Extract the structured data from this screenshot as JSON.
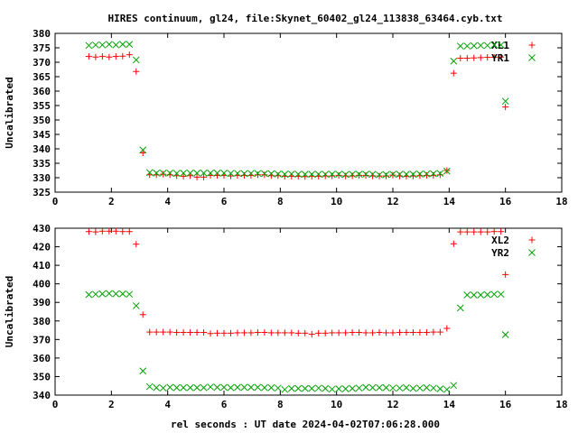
{
  "figure": {
    "title": "HIRES continuum, gl24, file:Skynet_60402_gl24_113838_63464.cyb.txt",
    "xlabel": "rel seconds : UT date 2024-04-02T07:06:28.000"
  },
  "chart_data": [
    {
      "type": "scatter",
      "ylabel": "Uncalibrated",
      "xlim": [
        0,
        18
      ],
      "ylim": [
        325,
        380
      ],
      "xticks": [
        0,
        2,
        4,
        6,
        8,
        10,
        12,
        14,
        16,
        18
      ],
      "yticks": [
        325,
        330,
        335,
        340,
        345,
        350,
        355,
        360,
        365,
        370,
        375,
        380
      ],
      "legend_position": "top-right",
      "grid": false,
      "series": [
        {
          "name": "XL1",
          "color": "#ff0000",
          "marker": "plus",
          "x": [
            1.2,
            1.44,
            1.68,
            1.92,
            2.16,
            2.4,
            2.64,
            2.88,
            3.12,
            3.36,
            3.6,
            3.84,
            4.08,
            4.32,
            4.56,
            4.8,
            5.04,
            5.28,
            5.52,
            5.76,
            6.0,
            6.24,
            6.48,
            6.72,
            6.96,
            7.2,
            7.44,
            7.68,
            7.92,
            8.16,
            8.4,
            8.64,
            8.88,
            9.12,
            9.36,
            9.6,
            9.84,
            10.08,
            10.32,
            10.56,
            10.8,
            11.04,
            11.28,
            11.52,
            11.76,
            12.0,
            12.24,
            12.48,
            12.72,
            12.96,
            13.2,
            13.44,
            13.68,
            13.92,
            14.16,
            14.4,
            14.64,
            14.88,
            15.12,
            15.36,
            15.6,
            15.84,
            16.0
          ],
          "y": [
            372,
            371.8,
            372,
            371.8,
            372,
            372.1,
            372.6,
            366.8,
            338.6,
            331,
            331,
            331.2,
            331,
            330.7,
            330.5,
            330.7,
            330.2,
            330.2,
            330.8,
            330.8,
            330.8,
            330.6,
            330.8,
            330.8,
            330.8,
            331,
            331,
            330.7,
            330.7,
            330.5,
            330.5,
            330.5,
            330.4,
            330.5,
            330.5,
            330.6,
            330.6,
            330.8,
            330.6,
            330.6,
            330.8,
            330.8,
            330.6,
            330.6,
            330.6,
            330.9,
            330.6,
            330.5,
            330.6,
            330.7,
            330.8,
            330.8,
            331,
            332.5,
            366.2,
            371.4,
            371.4,
            371.5,
            371.6,
            371.7,
            371.7,
            371.8,
            354.5
          ]
        },
        {
          "name": "YR1",
          "color": "#00a000",
          "marker": "x",
          "x": [
            1.2,
            1.44,
            1.68,
            1.92,
            2.16,
            2.4,
            2.64,
            2.88,
            3.12,
            3.36,
            3.6,
            3.84,
            4.08,
            4.32,
            4.56,
            4.8,
            5.04,
            5.28,
            5.52,
            5.76,
            6.0,
            6.24,
            6.48,
            6.72,
            6.96,
            7.2,
            7.44,
            7.68,
            7.92,
            8.16,
            8.4,
            8.64,
            8.88,
            9.12,
            9.36,
            9.6,
            9.84,
            10.08,
            10.32,
            10.56,
            10.8,
            11.04,
            11.28,
            11.52,
            11.76,
            12.0,
            12.24,
            12.48,
            12.72,
            12.96,
            13.2,
            13.44,
            13.68,
            13.92,
            14.16,
            14.4,
            14.64,
            14.88,
            15.12,
            15.36,
            15.6,
            15.84,
            16.0
          ],
          "y": [
            375.8,
            376,
            376,
            376.2,
            376,
            376.2,
            376.2,
            370.8,
            339.6,
            331.8,
            331.6,
            331.6,
            331.6,
            331.5,
            331.6,
            331.6,
            331.6,
            331.6,
            331.6,
            331.6,
            331.6,
            331.5,
            331.5,
            331.4,
            331.5,
            331.5,
            331.4,
            331.4,
            331.3,
            331.2,
            331.3,
            331.2,
            331.2,
            331.2,
            331.2,
            331.2,
            331.2,
            331.2,
            331.1,
            331.2,
            331.2,
            331.2,
            331.2,
            331,
            331.1,
            331.2,
            331.2,
            331.2,
            331.2,
            331.3,
            331.3,
            331.4,
            331.5,
            332.3,
            370.4,
            375.6,
            375.6,
            375.7,
            375.8,
            375.8,
            376,
            376,
            356.5
          ]
        }
      ]
    },
    {
      "type": "scatter",
      "ylabel": "Uncalibrated",
      "xlim": [
        0,
        18
      ],
      "ylim": [
        340,
        430
      ],
      "xticks": [
        0,
        2,
        4,
        6,
        8,
        10,
        12,
        14,
        16,
        18
      ],
      "yticks": [
        340,
        350,
        360,
        370,
        380,
        390,
        400,
        410,
        420,
        430
      ],
      "legend_position": "top-right",
      "grid": false,
      "series": [
        {
          "name": "XL2",
          "color": "#ff0000",
          "marker": "plus",
          "x": [
            1.2,
            1.44,
            1.68,
            1.92,
            2.16,
            2.4,
            2.64,
            2.88,
            3.12,
            3.36,
            3.6,
            3.84,
            4.08,
            4.32,
            4.56,
            4.8,
            5.04,
            5.28,
            5.52,
            5.76,
            6.0,
            6.24,
            6.48,
            6.72,
            6.96,
            7.2,
            7.44,
            7.68,
            7.92,
            8.16,
            8.4,
            8.64,
            8.88,
            9.12,
            9.36,
            9.6,
            9.84,
            10.08,
            10.32,
            10.56,
            10.8,
            11.04,
            11.28,
            11.52,
            11.76,
            12.0,
            12.24,
            12.48,
            12.72,
            12.96,
            13.2,
            13.44,
            13.68,
            13.92,
            14.16,
            14.4,
            14.64,
            14.88,
            15.12,
            15.36,
            15.6,
            15.84,
            16.0
          ],
          "y": [
            428.2,
            428,
            428.4,
            428.4,
            428.4,
            428.2,
            428.2,
            421.4,
            383.4,
            374,
            374,
            374,
            374,
            373.8,
            373.8,
            373.8,
            373.8,
            373.8,
            373.2,
            373.4,
            373.4,
            373.4,
            373.6,
            373.6,
            373.6,
            373.8,
            373.8,
            373.6,
            373.6,
            373.6,
            373.6,
            373.4,
            373.4,
            372.8,
            373.4,
            373.4,
            373.6,
            373.6,
            373.6,
            373.8,
            373.8,
            373.6,
            373.6,
            373.8,
            373.6,
            373.6,
            373.8,
            373.8,
            373.8,
            373.8,
            373.8,
            374,
            374,
            376,
            421.6,
            428,
            428,
            428,
            428,
            428,
            428.2,
            428.2,
            405
          ]
        },
        {
          "name": "YR2",
          "color": "#00a000",
          "marker": "x",
          "x": [
            1.2,
            1.44,
            1.68,
            1.92,
            2.16,
            2.4,
            2.64,
            2.88,
            3.12,
            3.36,
            3.6,
            3.84,
            4.08,
            4.32,
            4.56,
            4.8,
            5.04,
            5.28,
            5.52,
            5.76,
            6.0,
            6.24,
            6.48,
            6.72,
            6.96,
            7.2,
            7.44,
            7.68,
            7.92,
            8.16,
            8.4,
            8.64,
            8.88,
            9.12,
            9.36,
            9.6,
            9.84,
            10.08,
            10.32,
            10.56,
            10.8,
            11.04,
            11.28,
            11.52,
            11.76,
            12.0,
            12.24,
            12.48,
            12.72,
            12.96,
            13.2,
            13.44,
            13.68,
            13.92,
            14.16,
            14.4,
            14.64,
            14.88,
            15.12,
            15.36,
            15.6,
            15.84,
            16.0
          ],
          "y": [
            394.2,
            394.4,
            394.6,
            394.8,
            394.6,
            394.6,
            394.4,
            388.2,
            353,
            344.6,
            344,
            343.8,
            344.2,
            344,
            344,
            344,
            344,
            344,
            344.4,
            344.2,
            344.2,
            344,
            344.2,
            344.2,
            344.2,
            344.2,
            344,
            344,
            343.8,
            343,
            343.6,
            343.6,
            343.6,
            343.6,
            343.8,
            343.6,
            343.2,
            343.4,
            343.4,
            343.6,
            343.8,
            344.2,
            344,
            344,
            344,
            343.8,
            343.8,
            344,
            343.6,
            343.8,
            344,
            343.8,
            343.4,
            343,
            345.2,
            387,
            394,
            394,
            394,
            394.2,
            394.4,
            394.4,
            372.6
          ]
        }
      ]
    }
  ]
}
